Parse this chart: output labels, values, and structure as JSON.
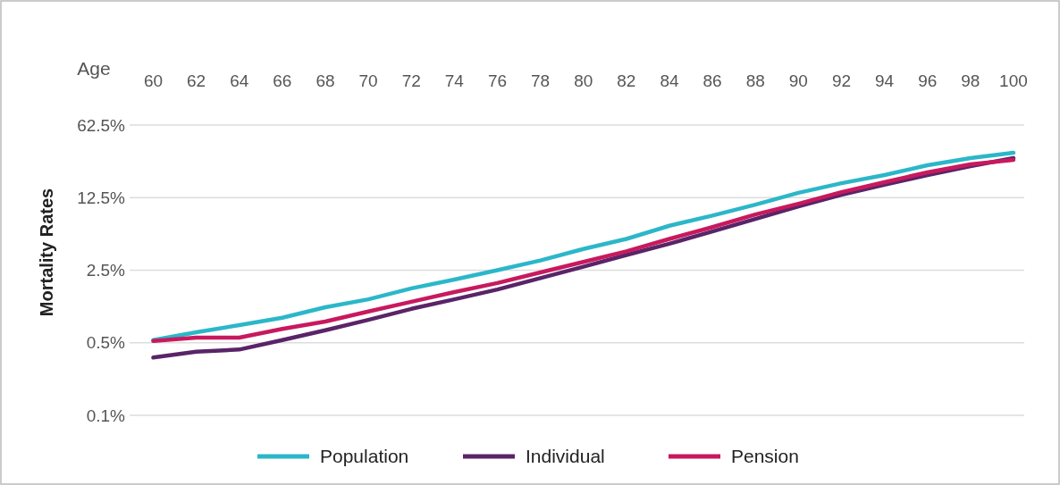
{
  "chart_data": {
    "type": "line",
    "xlabel": "Age",
    "ylabel": "Mortality Rates",
    "x": [
      60,
      62,
      64,
      66,
      68,
      70,
      72,
      74,
      76,
      78,
      80,
      82,
      84,
      86,
      88,
      90,
      92,
      94,
      96,
      98,
      100
    ],
    "series": [
      {
        "name": "Population",
        "color": "#2bb7c9",
        "values": [
          0.53,
          0.63,
          0.74,
          0.87,
          1.1,
          1.31,
          1.67,
          2.03,
          2.5,
          3.1,
          4.0,
          5.0,
          6.7,
          8.4,
          10.7,
          13.9,
          17.2,
          20.6,
          25.6,
          30,
          33.8
        ]
      },
      {
        "name": "Individual",
        "color": "#5a2468",
        "values": [
          0.36,
          0.41,
          0.43,
          0.53,
          0.66,
          0.83,
          1.06,
          1.31,
          1.63,
          2.1,
          2.7,
          3.5,
          4.5,
          5.9,
          7.8,
          10.3,
          13.3,
          16.6,
          20.6,
          25.1,
          30
        ]
      },
      {
        "name": "Pension",
        "color": "#c8195e",
        "values": [
          0.52,
          0.56,
          0.56,
          0.68,
          0.8,
          1.0,
          1.24,
          1.54,
          1.88,
          2.38,
          3.0,
          3.8,
          5.0,
          6.5,
          8.6,
          10.9,
          14.1,
          17.6,
          21.9,
          26.1,
          28.9
        ]
      }
    ],
    "xlim": [
      58.9,
      100.5
    ],
    "xticks": [
      60,
      62,
      64,
      66,
      68,
      70,
      72,
      74,
      76,
      78,
      80,
      82,
      84,
      86,
      88,
      90,
      92,
      94,
      96,
      98,
      100
    ],
    "ylim": [
      0.1,
      62.5
    ],
    "yticks": [
      {
        "value": 0.1,
        "label": "0.1%"
      },
      {
        "value": 0.5,
        "label": "0.5%"
      },
      {
        "value": 2.5,
        "label": "2.5%"
      },
      {
        "value": 12.5,
        "label": "12.5%"
      },
      {
        "value": 62.5,
        "label": "62.5%"
      }
    ],
    "log": true,
    "grid": "y",
    "legend": "bottom",
    "marker": "none",
    "line_style": "solid"
  }
}
